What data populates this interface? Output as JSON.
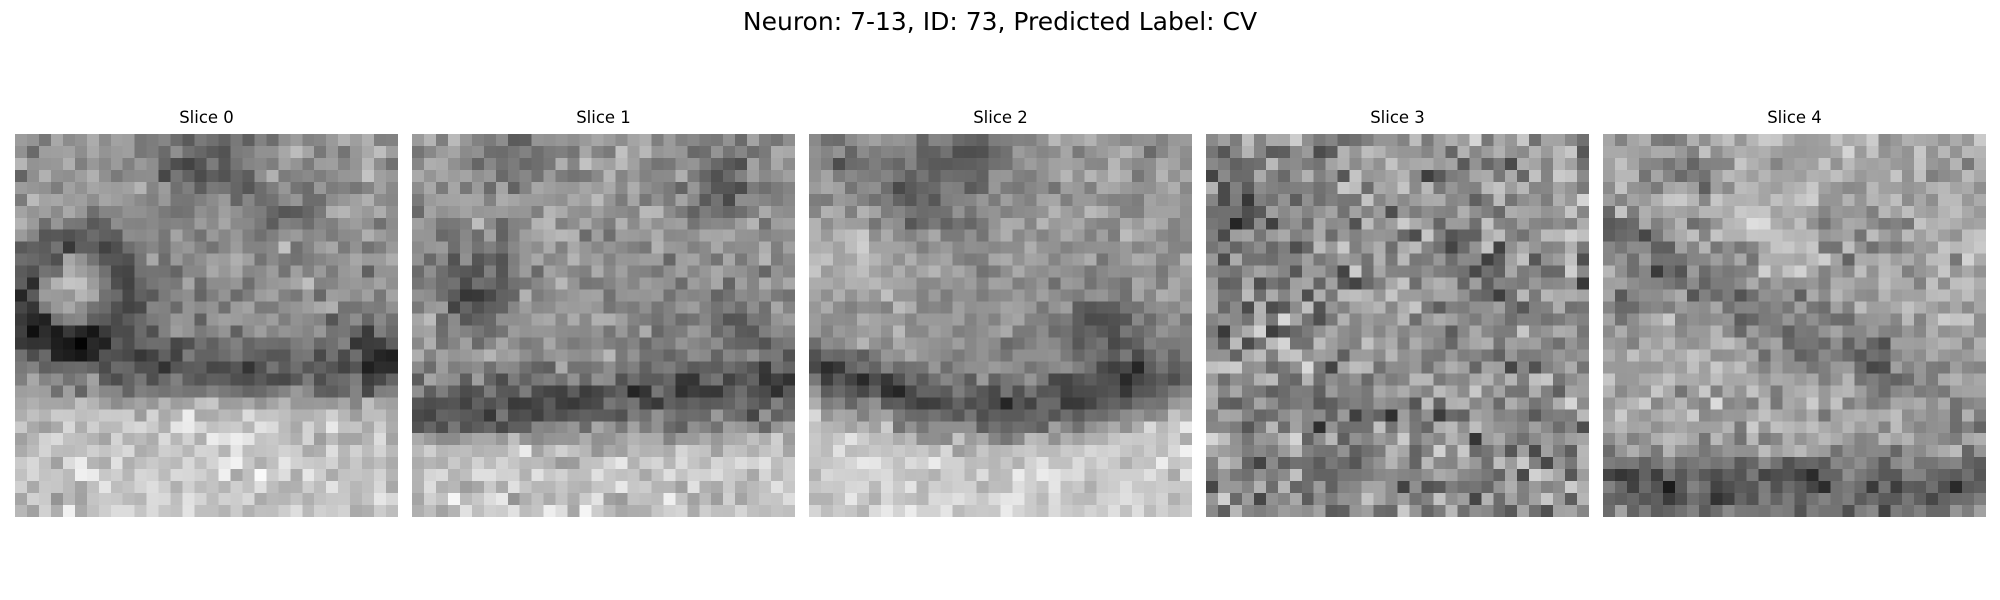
{
  "figure": {
    "title": "Neuron: 7-13, ID: 73, Predicted Label: CV"
  },
  "slices": [
    {
      "title": "Slice 0",
      "image": "grayscale electron-microscopy patch: bright textured blob lower half, dark curved membrane band across middle, dark ring on left"
    },
    {
      "title": "Slice 1",
      "image": "grayscale electron-microscopy patch: dark round vesicle on left, dark band across lower middle, bright lower region"
    },
    {
      "title": "Slice 2",
      "image": "grayscale electron-microscopy patch: dark spots at top, dark blob on right, dark arched band above bright lower region"
    },
    {
      "title": "Slice 3",
      "image": "grayscale electron-microscopy patch: noisy mid-gray texture with scattered dark pixels"
    },
    {
      "title": "Slice 4",
      "image": "grayscale electron-microscopy patch: lighter upper region, diagonal dark band through middle, dark band along bottom"
    }
  ]
}
